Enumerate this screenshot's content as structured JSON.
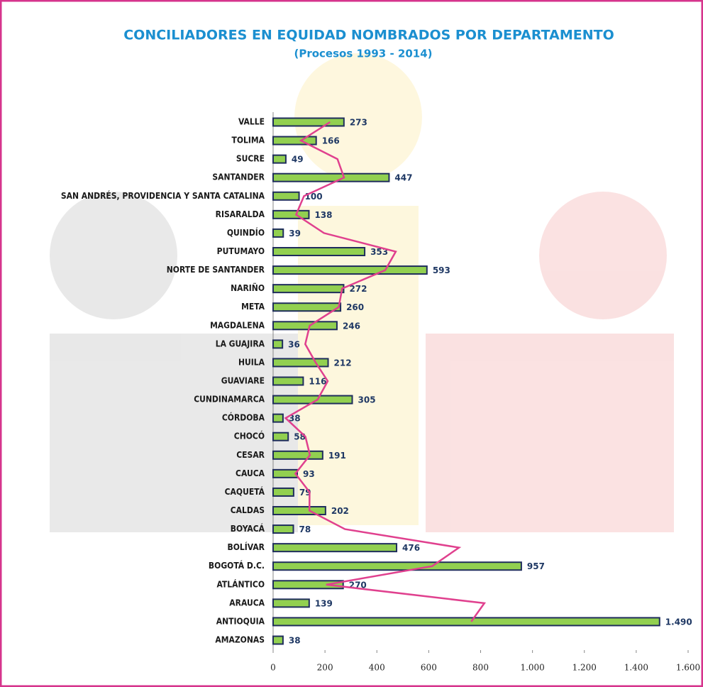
{
  "chart_data": {
    "type": "bar",
    "orientation": "horizontal",
    "title": "CONCILIADORES EN EQUIDAD NOMBRADOS POR DEPARTAMENTO",
    "subtitle": "(Procesos 1993 - 2014)",
    "categories": [
      "AMAZONAS",
      "ANTIOQUIA",
      "ARAUCA",
      "ATLÁNTICO",
      "BOGOTÁ D.C.",
      "BOLÍVAR",
      "BOYACÁ",
      "CALDAS",
      "CAQUETÁ",
      "CAUCA",
      "CESAR",
      "CHOCÓ",
      "CÓRDOBA",
      "CUNDINAMARCA",
      "GUAVIARE",
      "HUILA",
      "LA GUAJIRA",
      "MAGDALENA",
      "META",
      "NARIÑO",
      "NORTE DE SANTANDER",
      "PUTUMAYO",
      "QUINDÍO",
      "RISARALDA",
      "SAN ANDRÉS, PROVIDENCIA Y SANTA CATALINA",
      "SANTANDER",
      "SUCRE",
      "TOLIMA",
      "VALLE"
    ],
    "values": [
      38,
      1490,
      139,
      270,
      957,
      476,
      78,
      202,
      79,
      93,
      191,
      58,
      38,
      305,
      116,
      212,
      36,
      246,
      260,
      272,
      593,
      353,
      39,
      138,
      100,
      447,
      49,
      166,
      273
    ],
    "value_labels": [
      "38",
      "1.490",
      "139",
      "270",
      "957",
      "476",
      "78",
      "202",
      "79",
      "93",
      "191",
      "58",
      "38",
      "305",
      "116",
      "212",
      "36",
      "246",
      "260",
      "272",
      "593",
      "353",
      "39",
      "138",
      "100",
      "447",
      "49",
      "166",
      "273"
    ],
    "color": "#92d050",
    "border_color": "#1f2d5c",
    "trendline": {
      "type": "moving_average",
      "period": 2,
      "color": "#e0408e"
    },
    "xlim": [
      0,
      1600
    ],
    "xticks": [
      0,
      200,
      400,
      600,
      800,
      {
        "value": 1000,
        "label": "1.000"
      },
      {
        "value": 1200,
        "label": "1.200"
      },
      {
        "value": 1400,
        "label": "1.400"
      },
      {
        "value": 1600,
        "label": "1.600"
      }
    ],
    "grid": false
  }
}
